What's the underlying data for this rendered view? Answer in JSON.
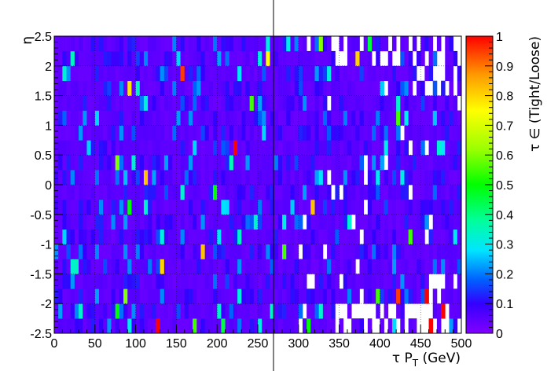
{
  "chart_data": {
    "type": "heatmap",
    "xlabel": "τ P",
    "xlabel_sub": "T",
    "xlabel_unit": " (GeV)",
    "ylabel": "η",
    "zlabel": "τ ∈ (Tight/Loose)",
    "xlim": [
      0,
      500
    ],
    "ylim": [
      -2.5,
      2.5
    ],
    "zlim": [
      0,
      1
    ],
    "x_ticks": [
      0,
      50,
      100,
      150,
      200,
      250,
      300,
      350,
      400,
      450,
      500
    ],
    "y_ticks": [
      -2.5,
      -2,
      -1.5,
      -1,
      -0.5,
      0,
      0.5,
      1,
      1.5,
      2,
      2.5
    ],
    "z_ticks": [
      0,
      0.1,
      0.2,
      0.3,
      0.4,
      0.5,
      0.6,
      0.7,
      0.8,
      0.9,
      1
    ],
    "x_tick_labels": [
      "0",
      "50",
      "100",
      "150",
      "200",
      "250",
      "300",
      "350",
      "400",
      "450",
      "500"
    ],
    "y_tick_labels": [
      "-2.5",
      "-2",
      "-1.5",
      "-1",
      "-0.5",
      "0",
      "0.5",
      "1",
      "1.5",
      "2",
      "2.5"
    ],
    "z_tick_labels": [
      "0",
      "0.1",
      "0.2",
      "0.3",
      "0.4",
      "0.5",
      "0.6",
      "0.7",
      "0.8",
      "0.9",
      "1"
    ],
    "bins": {
      "x_bins": 100,
      "x_bin_width": 5,
      "y_bins": 20,
      "y_bin_width": 0.25
    },
    "typical_value": 0.03,
    "grid": true,
    "highlighted_cells": [
      {
        "pt": 447.5,
        "eta": 2.375,
        "value": 1.0
      },
      {
        "pt": 262.5,
        "eta": 2.125,
        "value": 0.75
      },
      {
        "pt": 372.5,
        "eta": 2.125,
        "value": 0.8
      },
      {
        "pt": 387.5,
        "eta": 2.375,
        "value": 0.45
      },
      {
        "pt": 157.5,
        "eta": 1.875,
        "value": 0.95
      },
      {
        "pt": 92.5,
        "eta": 1.625,
        "value": 0.78
      },
      {
        "pt": 222.5,
        "eta": 0.625,
        "value": 1.0
      },
      {
        "pt": 112.5,
        "eta": 0.125,
        "value": 0.82
      },
      {
        "pt": 317.5,
        "eta": -0.375,
        "value": 0.82
      },
      {
        "pt": 182.5,
        "eta": -1.125,
        "value": 0.82
      },
      {
        "pt": 132.5,
        "eta": -1.375,
        "value": 0.8
      },
      {
        "pt": 127.5,
        "eta": -2.375,
        "value": 1.0
      },
      {
        "pt": 462.5,
        "eta": -2.375,
        "value": 1.0
      },
      {
        "pt": 457.5,
        "eta": -1.875,
        "value": 1.0
      },
      {
        "pt": 477.5,
        "eta": -2.125,
        "value": 1.0
      },
      {
        "pt": 422.5,
        "eta": -1.875,
        "value": 0.95
      },
      {
        "pt": 87.5,
        "eta": -1.875,
        "value": 0.6
      },
      {
        "pt": 77.5,
        "eta": -2.125,
        "value": 0.5
      },
      {
        "pt": 177.5,
        "eta": 1.625,
        "value": 0.22
      },
      {
        "pt": 242.5,
        "eta": 1.375,
        "value": 0.55
      },
      {
        "pt": 422.5,
        "eta": 1.125,
        "value": 0.55
      },
      {
        "pt": 437.5,
        "eta": -0.875,
        "value": 0.55
      },
      {
        "pt": 282.5,
        "eta": -1.125,
        "value": 0.55
      },
      {
        "pt": 217.5,
        "eta": 0.375,
        "value": 0.35
      },
      {
        "pt": 92.5,
        "eta": -0.375,
        "value": 0.5
      },
      {
        "pt": 197.5,
        "eta": -0.125,
        "value": 0.5
      },
      {
        "pt": 77.5,
        "eta": 0.375,
        "value": 0.6
      },
      {
        "pt": 327.5,
        "eta": 2.375,
        "value": 0.6
      },
      {
        "pt": 287.5,
        "eta": 2.375,
        "value": 0.3
      },
      {
        "pt": 397.5,
        "eta": -1.875,
        "value": 0.55
      },
      {
        "pt": 207.5,
        "eta": -2.375,
        "value": 0.45
      },
      {
        "pt": 172.5,
        "eta": -2.375,
        "value": 0.55
      },
      {
        "pt": 312.5,
        "eta": -2.375,
        "value": 0.5
      }
    ],
    "empty_cells_note": "white (no entries) at high pT near |eta| = 2-2.5"
  }
}
